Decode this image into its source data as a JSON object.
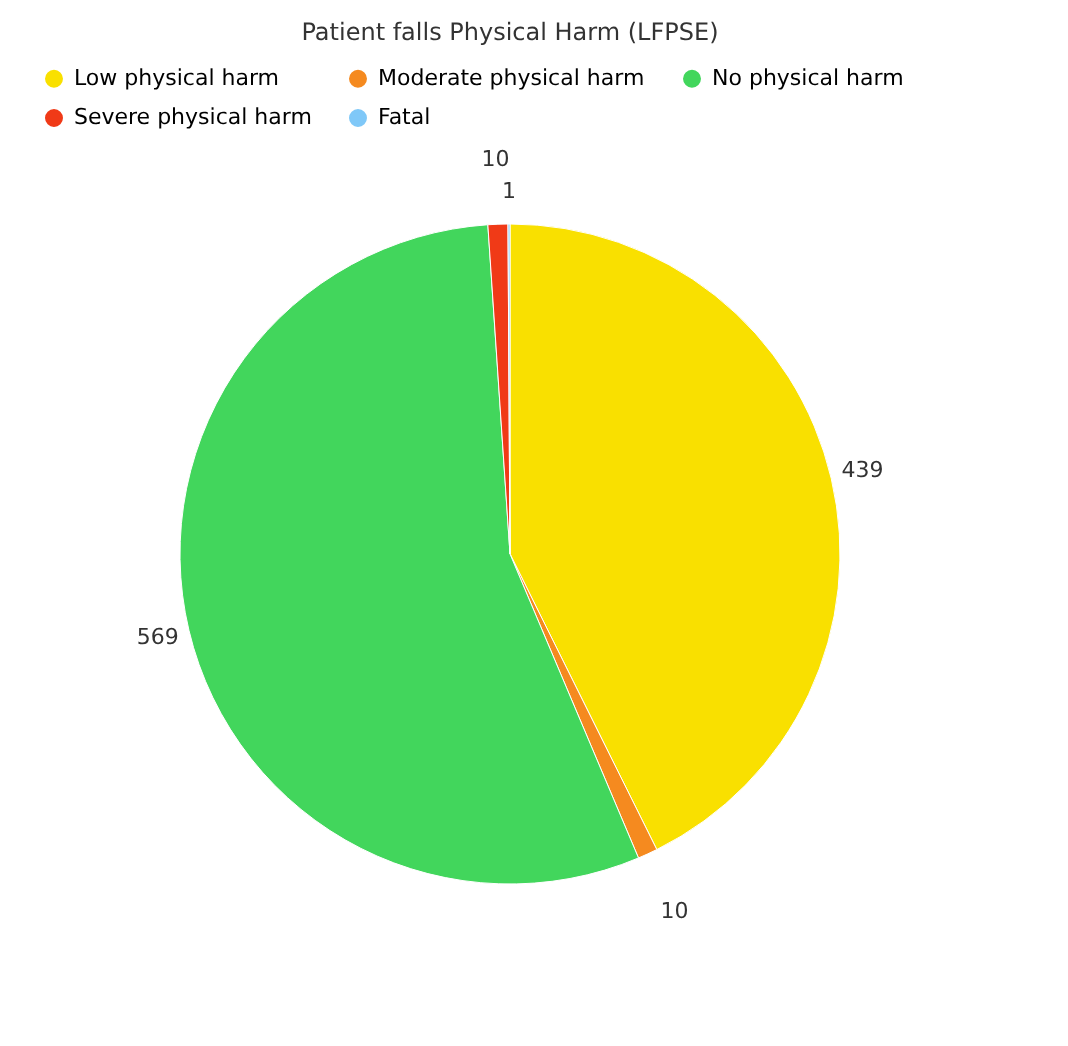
{
  "chart_data": {
    "type": "pie",
    "title": "Patient falls Physical Harm (LFPSE)",
    "categories": [
      "Low physical harm",
      "Moderate physical harm",
      "No physical harm",
      "Severe physical harm",
      "Fatal"
    ],
    "values": [
      439,
      10,
      569,
      10,
      1
    ],
    "colors": [
      "#f9e000",
      "#f58a1f",
      "#42d65c",
      "#f03a17",
      "#7fc8f8"
    ],
    "data_labels": true,
    "legend": "top"
  }
}
